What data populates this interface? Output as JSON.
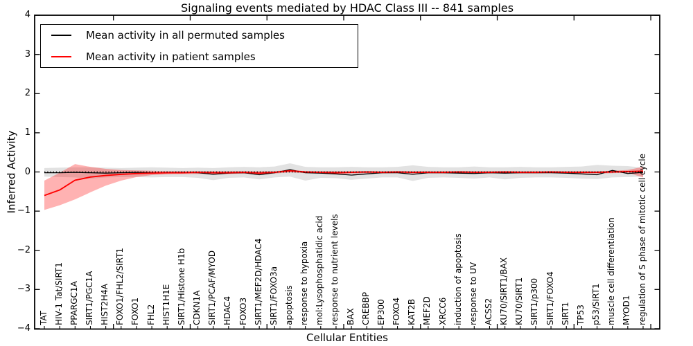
{
  "title": "Signaling events mediated by HDAC Class III -- 841 samples",
  "legend": {
    "entries": [
      {
        "label": "Mean activity in all permuted samples",
        "color": "#000000"
      },
      {
        "label": "Mean activity in patient samples",
        "color": "#ff0000"
      }
    ]
  },
  "colors": {
    "patient_line": "#ff0000",
    "permuted_line": "#000000",
    "patient_band": "#ff0000",
    "permuted_band": "#000000",
    "axis": "#000000"
  },
  "chart_data": {
    "type": "line",
    "title": "Signaling events mediated by HDAC Class III -- 841 samples",
    "xlabel": "Cellular Entities",
    "ylabel": "Inferred Activity",
    "ylim": [
      -4,
      4
    ],
    "grid": false,
    "legend_position": "upper left",
    "y_ticks": [
      4,
      3,
      2,
      1,
      0,
      -1,
      -2,
      -3,
      -4
    ],
    "y_tick_labels": [
      "4",
      "3",
      "2",
      "1",
      "0",
      "−1",
      "−2",
      "−3",
      "−4"
    ],
    "zero_line": {
      "style": "dotted",
      "color": "#000000",
      "y": 0
    },
    "categories": [
      "TAT",
      "HIV-1 Tat/SIRT1",
      "PPARGC1A",
      "SIRT1/PGC1A",
      "HIST2H4A",
      "FOXO1/FHL2/SIRT1",
      "FOXO1",
      "FHL2",
      "HIST1H1E",
      "SIRT1/Histone H1b",
      "CDKN1A",
      "SIRT1/PCAF/MYOD",
      "HDAC4",
      "FOXO3",
      "SIRT1/MEF2D/HDAC4",
      "SIRT1/FOXO3a",
      "apoptosis",
      "response to hypoxia",
      "mol:Lysophosphatidic acid",
      "response to nutrient levels",
      "BAX",
      "CREBBP",
      "EP300",
      "FOXO4",
      "KAT2B",
      "MEF2D",
      "XRCC6",
      "induction of apoptosis",
      "response to UV",
      "ACSS2",
      "KU70/SIRT1/BAX",
      "KU70/SIRT1",
      "SIRT1/p300",
      "SIRT1/FOXO4",
      "SIRT1",
      "TP53",
      "p53/SIRT1",
      "muscle cell differentiation",
      "MYOD1",
      "regulation of S phase of mitotic cell cycle"
    ],
    "series": [
      {
        "name": "Mean activity in all permuted samples",
        "color": "#000000",
        "values": [
          -0.02,
          -0.02,
          -0.01,
          -0.02,
          -0.03,
          -0.02,
          -0.01,
          -0.02,
          -0.02,
          -0.01,
          -0.02,
          -0.06,
          -0.03,
          -0.02,
          -0.07,
          -0.02,
          0.06,
          -0.02,
          -0.03,
          -0.05,
          -0.08,
          -0.05,
          -0.02,
          -0.02,
          -0.06,
          -0.02,
          -0.02,
          -0.03,
          -0.04,
          -0.02,
          -0.03,
          -0.02,
          -0.02,
          -0.02,
          -0.03,
          -0.05,
          -0.07,
          0.04,
          -0.04,
          -0.01
        ]
      },
      {
        "name": "Mean activity in patient samples",
        "color": "#ff0000",
        "values": [
          -0.6,
          -0.46,
          -0.21,
          -0.13,
          -0.09,
          -0.06,
          -0.04,
          -0.03,
          -0.02,
          -0.02,
          -0.01,
          -0.02,
          -0.02,
          -0.01,
          -0.03,
          -0.01,
          0.03,
          0.0,
          -0.01,
          -0.02,
          -0.01,
          0.0,
          -0.01,
          0.0,
          -0.01,
          -0.01,
          -0.01,
          0.0,
          -0.01,
          -0.01,
          0.0,
          -0.01,
          -0.01,
          0.0,
          -0.01,
          -0.01,
          -0.01,
          0.0,
          0.01,
          0.02
        ]
      }
    ],
    "bands": [
      {
        "name": "permuted-samples-range",
        "color": "#000000",
        "opacity": 0.115,
        "upper": [
          0.1,
          0.11,
          0.12,
          0.12,
          0.11,
          0.1,
          0.11,
          0.12,
          0.11,
          0.1,
          0.11,
          0.1,
          0.12,
          0.13,
          0.12,
          0.14,
          0.22,
          0.13,
          0.12,
          0.12,
          0.13,
          0.12,
          0.12,
          0.13,
          0.17,
          0.13,
          0.12,
          0.12,
          0.14,
          0.12,
          0.12,
          0.13,
          0.12,
          0.12,
          0.13,
          0.14,
          0.18,
          0.16,
          0.15,
          0.11
        ],
        "lower": [
          -0.12,
          -0.13,
          -0.14,
          -0.17,
          -0.14,
          -0.13,
          -0.13,
          -0.14,
          -0.13,
          -0.13,
          -0.15,
          -0.21,
          -0.15,
          -0.14,
          -0.19,
          -0.14,
          -0.12,
          -0.22,
          -0.15,
          -0.16,
          -0.2,
          -0.17,
          -0.14,
          -0.14,
          -0.23,
          -0.15,
          -0.14,
          -0.15,
          -0.17,
          -0.14,
          -0.19,
          -0.15,
          -0.14,
          -0.14,
          -0.15,
          -0.17,
          -0.18,
          -0.14,
          -0.13,
          -0.12
        ]
      },
      {
        "name": "patient-samples-range",
        "color": "#ff0000",
        "opacity": 0.3,
        "upper": [
          -0.22,
          -0.02,
          0.2,
          0.13,
          0.08,
          0.05,
          0.04,
          0.03,
          0.02,
          0.02,
          0.02,
          0.02,
          0.02,
          0.02,
          0.02,
          0.02,
          0.05,
          0.02,
          0.02,
          0.02,
          0.02,
          0.02,
          0.02,
          0.02,
          0.02,
          0.02,
          0.02,
          0.02,
          0.02,
          0.02,
          0.02,
          0.02,
          0.02,
          0.02,
          0.02,
          0.02,
          0.02,
          0.03,
          0.05,
          0.13
        ],
        "lower": [
          -0.97,
          -0.85,
          -0.7,
          -0.52,
          -0.35,
          -0.22,
          -0.13,
          -0.08,
          -0.06,
          -0.05,
          -0.05,
          -0.05,
          -0.05,
          -0.04,
          -0.06,
          -0.04,
          -0.01,
          -0.03,
          -0.04,
          -0.05,
          -0.04,
          -0.03,
          -0.04,
          -0.03,
          -0.04,
          -0.04,
          -0.04,
          -0.03,
          -0.04,
          -0.04,
          -0.03,
          -0.04,
          -0.04,
          -0.03,
          -0.04,
          -0.04,
          -0.04,
          -0.03,
          -0.02,
          -0.14
        ]
      }
    ]
  }
}
